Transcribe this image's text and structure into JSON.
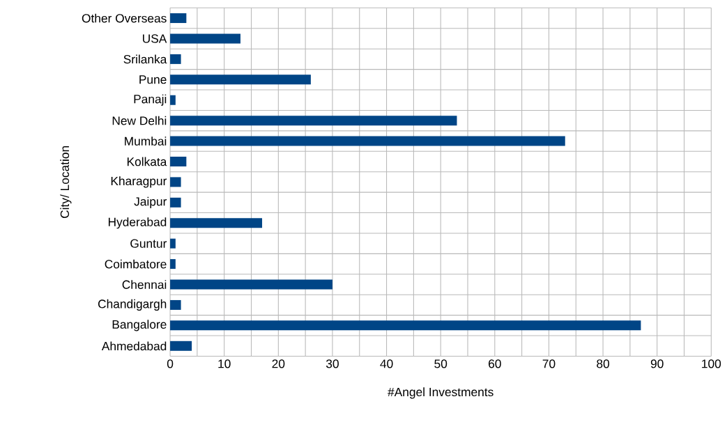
{
  "chart_data": {
    "type": "bar",
    "orientation": "horizontal",
    "xlabel": "#Angel Investments",
    "ylabel": "City/ Location",
    "categories": [
      "Other Overseas",
      "USA",
      "Srilanka",
      "Pune",
      "Panaji",
      "New Delhi",
      "Mumbai",
      "Kolkata",
      "Kharagpur",
      "Jaipur",
      "Hyderabad",
      "Guntur",
      "Coimbatore",
      "Chennai",
      "Chandigargh",
      "Bangalore",
      "Ahmedabad"
    ],
    "values": [
      3,
      13,
      2,
      26,
      1,
      53,
      73,
      3,
      2,
      2,
      17,
      1,
      1,
      30,
      2,
      87,
      4
    ],
    "color": "#004586",
    "xlim": [
      0,
      100
    ],
    "xticks": [
      0,
      {
        "value": 5,
        "label": null
      },
      10,
      {
        "value": 15,
        "label": null
      },
      20,
      {
        "value": 25,
        "label": null
      },
      30,
      {
        "value": 35,
        "label": null
      },
      40,
      {
        "value": 45,
        "label": null
      },
      50,
      {
        "value": 55,
        "label": null
      },
      60,
      {
        "value": 65,
        "label": null
      },
      70,
      {
        "value": 75,
        "label": null
      },
      80,
      {
        "value": 85,
        "label": null
      },
      90,
      {
        "value": 95,
        "label": null
      },
      100
    ],
    "grid": true
  }
}
